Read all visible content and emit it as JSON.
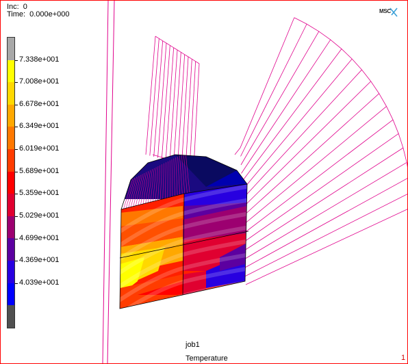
{
  "header": {
    "inc_label": "Inc:",
    "inc_value": "0",
    "time_label": "Time:",
    "time_value": "0.000e+000"
  },
  "logo": {
    "text": "MSC"
  },
  "legend": {
    "colors": [
      "#a8a8a8",
      "#ffff00",
      "#ffd800",
      "#ffa800",
      "#ff7800",
      "#ff3c00",
      "#ff0000",
      "#e00030",
      "#9c0070",
      "#5c00a0",
      "#2800e0",
      "#0000ff",
      "#505050"
    ],
    "ticks": [
      "7.338e+001",
      "7.008e+001",
      "6.678e+001",
      "6.349e+001",
      "6.019e+001",
      "5.689e+001",
      "5.359e+001",
      "5.029e+001",
      "4.699e+001",
      "4.369e+001",
      "4.039e+001"
    ]
  },
  "footer": {
    "job": "job1",
    "result": "Temperature",
    "index": "1"
  },
  "colors": {
    "mesh_line": "#e0008c",
    "frame_border": "#ff0000"
  }
}
